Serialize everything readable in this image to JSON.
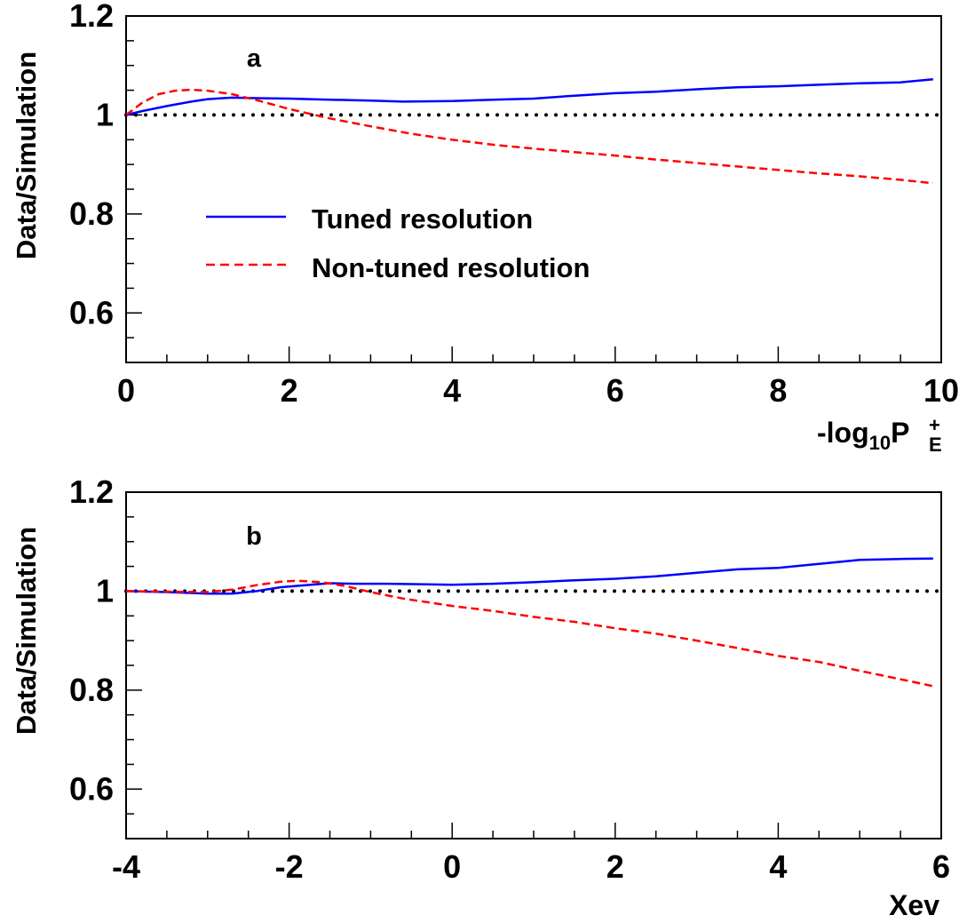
{
  "chart_data": [
    {
      "type": "line",
      "panel_label": "a",
      "xlabel_text": "-log",
      "xlabel_sub": "10",
      "xlabel_main": "P",
      "xlabel_sup": "+",
      "xlabel_subscript2": "E",
      "ylabel": "Data/Simulation",
      "xlim": [
        0,
        10
      ],
      "ylim": [
        0.5,
        1.2
      ],
      "x_ticks": [
        "0",
        "2",
        "4",
        "6",
        "8",
        "10"
      ],
      "y_ticks": [
        "0.6",
        "0.8",
        "1",
        "1.2"
      ],
      "legend": {
        "position": "center-left",
        "entries": [
          "Tuned resolution",
          "Non-tuned resolution"
        ]
      },
      "reference_line": {
        "y": 1.0,
        "style": "dotted",
        "color": "#000000"
      },
      "series": [
        {
          "name": "Tuned resolution",
          "color": "#0000ff",
          "style": "solid",
          "x": [
            0,
            0.2,
            0.5,
            0.8,
            1.0,
            1.3,
            1.6,
            2.0,
            2.5,
            3.0,
            3.4,
            4.0,
            4.5,
            5.0,
            5.5,
            6.0,
            6.5,
            7.0,
            7.5,
            8.0,
            8.5,
            9.0,
            9.5,
            9.9
          ],
          "y": [
            1.0,
            1.008,
            1.018,
            1.027,
            1.032,
            1.035,
            1.034,
            1.033,
            1.031,
            1.029,
            1.027,
            1.028,
            1.031,
            1.033,
            1.039,
            1.044,
            1.047,
            1.052,
            1.056,
            1.058,
            1.061,
            1.064,
            1.066,
            1.072
          ]
        },
        {
          "name": "Non-tuned resolution",
          "color": "#ff0000",
          "style": "dashed",
          "x": [
            0,
            0.2,
            0.4,
            0.6,
            0.8,
            1.0,
            1.3,
            1.6,
            2.0,
            2.5,
            3.0,
            3.5,
            4.0,
            4.5,
            5.0,
            5.5,
            6.0,
            6.5,
            7.0,
            7.5,
            8.0,
            8.5,
            9.0,
            9.5,
            9.9
          ],
          "y": [
            1.0,
            1.025,
            1.042,
            1.049,
            1.051,
            1.049,
            1.042,
            1.03,
            1.012,
            0.993,
            0.977,
            0.962,
            0.95,
            0.94,
            0.932,
            0.925,
            0.918,
            0.91,
            0.903,
            0.896,
            0.889,
            0.882,
            0.876,
            0.869,
            0.862
          ]
        }
      ]
    },
    {
      "type": "line",
      "panel_label": "b",
      "xlabel": "Xev",
      "ylabel": "Data/Simulation",
      "xlim": [
        -4,
        6
      ],
      "ylim": [
        0.5,
        1.2
      ],
      "x_ticks": [
        "-4",
        "-2",
        "0",
        "2",
        "4",
        "6"
      ],
      "y_ticks": [
        "0.6",
        "0.8",
        "1",
        "1.2"
      ],
      "reference_line": {
        "y": 1.0,
        "style": "dotted",
        "color": "#000000"
      },
      "series": [
        {
          "name": "Tuned resolution",
          "color": "#0000ff",
          "style": "solid",
          "x": [
            -4,
            -3.5,
            -3.0,
            -2.7,
            -2.4,
            -2.1,
            -1.8,
            -1.5,
            -1.2,
            -0.8,
            -0.4,
            0,
            0.5,
            1.0,
            1.5,
            2.0,
            2.5,
            3.0,
            3.5,
            4.0,
            4.5,
            5.0,
            5.5,
            5.9
          ],
          "y": [
            1.0,
            0.998,
            0.995,
            0.995,
            1.0,
            1.008,
            1.012,
            1.016,
            1.015,
            1.015,
            1.014,
            1.013,
            1.015,
            1.018,
            1.022,
            1.025,
            1.03,
            1.037,
            1.044,
            1.047,
            1.055,
            1.063,
            1.065,
            1.066
          ]
        },
        {
          "name": "Non-tuned resolution",
          "color": "#ff0000",
          "style": "dashed",
          "x": [
            -4,
            -3.5,
            -3.0,
            -2.7,
            -2.4,
            -2.1,
            -1.9,
            -1.6,
            -1.3,
            -1.0,
            -0.6,
            0,
            0.5,
            1.0,
            1.5,
            2.0,
            2.5,
            3.0,
            3.5,
            4.0,
            4.5,
            5.0,
            5.5,
            5.9
          ],
          "y": [
            1.0,
            0.999,
            0.998,
            1.003,
            1.012,
            1.019,
            1.021,
            1.018,
            1.01,
            0.998,
            0.985,
            0.97,
            0.96,
            0.948,
            0.938,
            0.925,
            0.914,
            0.9,
            0.885,
            0.869,
            0.857,
            0.839,
            0.822,
            0.808
          ]
        }
      ]
    }
  ]
}
